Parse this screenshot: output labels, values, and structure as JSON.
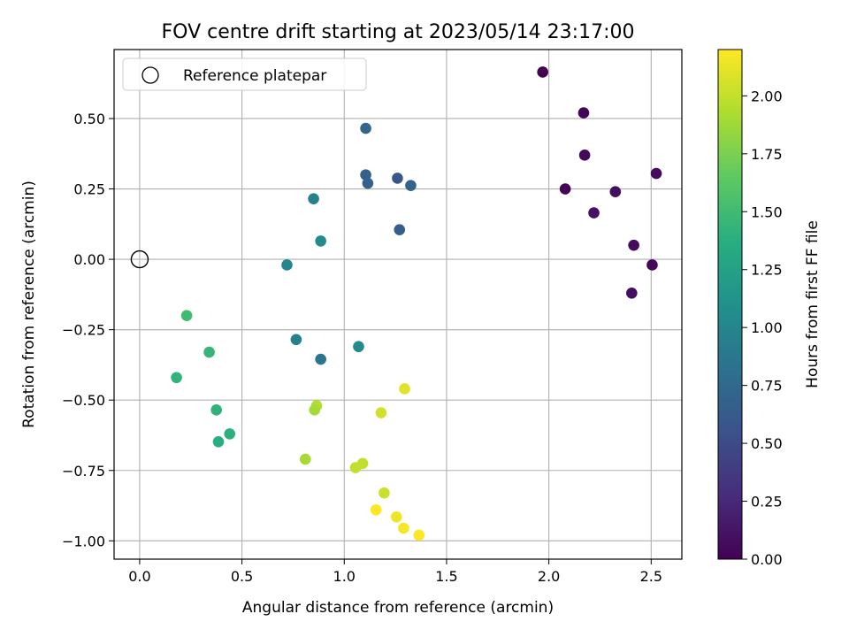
{
  "chart_data": {
    "type": "scatter",
    "title": "FOV centre drift starting at 2023/05/14 23:17:00",
    "xlabel": "Angular distance from reference (arcmin)",
    "ylabel": "Rotation from reference (arcmin)",
    "xlim": [
      -0.125,
      2.65
    ],
    "ylim": [
      -1.065,
      0.745
    ],
    "xticks": [
      0.0,
      0.5,
      1.0,
      1.5,
      2.0,
      2.5
    ],
    "xtick_labels": [
      "0.0",
      "0.5",
      "1.0",
      "1.5",
      "2.0",
      "2.5"
    ],
    "yticks": [
      -1.0,
      -0.75,
      -0.5,
      -0.25,
      0.0,
      0.25,
      0.5
    ],
    "ytick_labels": [
      "−1.00",
      "−0.75",
      "−0.50",
      "−0.25",
      "0.00",
      "0.25",
      "0.50"
    ],
    "grid": true,
    "legend": {
      "position": "top-left",
      "entries": [
        "Reference platepar"
      ]
    },
    "reference_point": {
      "x": 0.0,
      "y": 0.0
    },
    "colorbar": {
      "label": "Hours from first FF file",
      "colormap": "viridis",
      "range": [
        0.0,
        2.2
      ],
      "ticks": [
        0.0,
        0.25,
        0.5,
        0.75,
        1.0,
        1.25,
        1.5,
        1.75,
        2.0
      ],
      "tick_labels": [
        "0.00",
        "0.25",
        "0.50",
        "0.75",
        "1.00",
        "1.25",
        "1.50",
        "1.75",
        "2.00"
      ]
    },
    "points": [
      {
        "x": 1.97,
        "y": 0.665,
        "c": 0.0
      },
      {
        "x": 2.17,
        "y": 0.52,
        "c": 0.03
      },
      {
        "x": 2.175,
        "y": 0.37,
        "c": 0.05
      },
      {
        "x": 2.525,
        "y": 0.305,
        "c": 0.06
      },
      {
        "x": 2.08,
        "y": 0.25,
        "c": 0.02
      },
      {
        "x": 2.325,
        "y": 0.24,
        "c": 0.08
      },
      {
        "x": 2.22,
        "y": 0.165,
        "c": 0.1
      },
      {
        "x": 2.415,
        "y": 0.05,
        "c": 0.07
      },
      {
        "x": 2.505,
        "y": -0.02,
        "c": 0.04
      },
      {
        "x": 2.405,
        "y": -0.12,
        "c": 0.09
      },
      {
        "x": 1.105,
        "y": 0.465,
        "c": 0.72
      },
      {
        "x": 1.105,
        "y": 0.3,
        "c": 0.68
      },
      {
        "x": 1.115,
        "y": 0.27,
        "c": 0.7
      },
      {
        "x": 1.26,
        "y": 0.288,
        "c": 0.6
      },
      {
        "x": 1.325,
        "y": 0.262,
        "c": 0.7
      },
      {
        "x": 1.27,
        "y": 0.105,
        "c": 0.65
      },
      {
        "x": 0.85,
        "y": 0.215,
        "c": 0.95
      },
      {
        "x": 0.885,
        "y": 0.065,
        "c": 1.05
      },
      {
        "x": 0.72,
        "y": -0.02,
        "c": 1.0
      },
      {
        "x": 0.765,
        "y": -0.285,
        "c": 0.95
      },
      {
        "x": 0.885,
        "y": -0.355,
        "c": 0.85
      },
      {
        "x": 1.07,
        "y": -0.31,
        "c": 1.05
      },
      {
        "x": 0.23,
        "y": -0.2,
        "c": 1.5
      },
      {
        "x": 0.34,
        "y": -0.33,
        "c": 1.45
      },
      {
        "x": 0.18,
        "y": -0.42,
        "c": 1.43
      },
      {
        "x": 0.375,
        "y": -0.535,
        "c": 1.42
      },
      {
        "x": 0.44,
        "y": -0.62,
        "c": 1.4
      },
      {
        "x": 0.385,
        "y": -0.648,
        "c": 1.38
      },
      {
        "x": 0.865,
        "y": -0.52,
        "c": 1.95
      },
      {
        "x": 0.855,
        "y": -0.535,
        "c": 1.9
      },
      {
        "x": 0.81,
        "y": -0.71,
        "c": 1.9
      },
      {
        "x": 1.295,
        "y": -0.46,
        "c": 2.1
      },
      {
        "x": 1.18,
        "y": -0.545,
        "c": 2.05
      },
      {
        "x": 1.09,
        "y": -0.725,
        "c": 2.0
      },
      {
        "x": 1.055,
        "y": -0.74,
        "c": 2.0
      },
      {
        "x": 1.195,
        "y": -0.83,
        "c": 2.02
      },
      {
        "x": 1.155,
        "y": -0.89,
        "c": 2.2
      },
      {
        "x": 1.255,
        "y": -0.915,
        "c": 2.15
      },
      {
        "x": 1.29,
        "y": -0.955,
        "c": 2.18
      },
      {
        "x": 1.365,
        "y": -0.98,
        "c": 2.2
      }
    ]
  }
}
